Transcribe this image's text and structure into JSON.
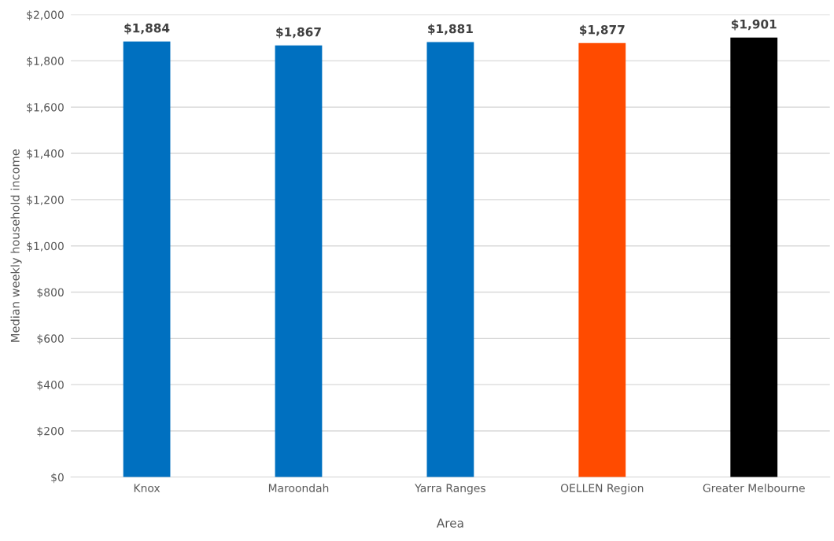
{
  "chart_data": {
    "type": "bar",
    "xlabel": "Area",
    "ylabel": "Median weekly household income",
    "categories": [
      "Knox",
      "Maroondah",
      "Yarra Ranges",
      "OELLEN Region",
      "Greater Melbourne"
    ],
    "values": [
      1884,
      1867,
      1881,
      1877,
      1901
    ],
    "colors": [
      "#0070c0",
      "#0070c0",
      "#0070c0",
      "#ff4b00",
      "#000000"
    ],
    "value_labels": [
      "$1,884",
      "$1,867",
      "$1,881",
      "$1,877",
      "$1,901"
    ],
    "ylim": [
      0,
      2000
    ],
    "yticks": [
      {
        "value": 0,
        "label": "$0"
      },
      {
        "value": 200,
        "label": "$200"
      },
      {
        "value": 400,
        "label": "$400"
      },
      {
        "value": 600,
        "label": "$600"
      },
      {
        "value": 800,
        "label": "$800"
      },
      {
        "value": 1000,
        "label": "$1,000"
      },
      {
        "value": 1200,
        "label": "$1,200"
      },
      {
        "value": 1400,
        "label": "$1,400"
      },
      {
        "value": 1600,
        "label": "$1,600"
      },
      {
        "value": 1800,
        "label": "$1,800"
      },
      {
        "value": 2000,
        "label": "$2,000"
      }
    ],
    "grid": "y",
    "legend": false
  }
}
